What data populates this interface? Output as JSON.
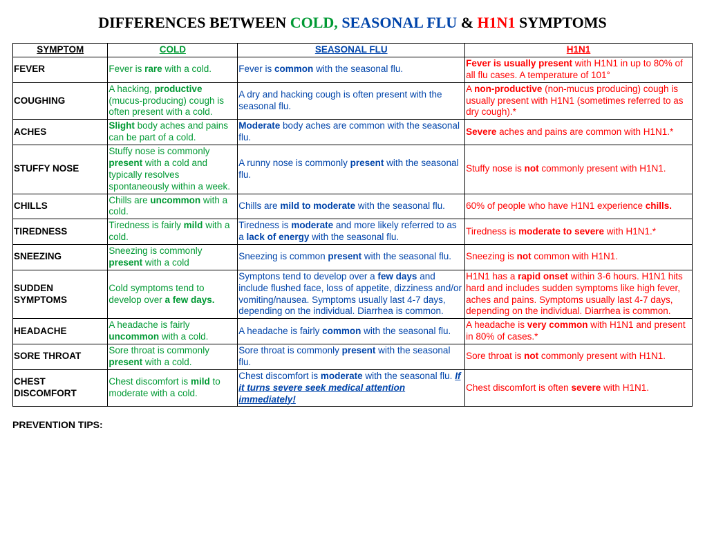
{
  "title_parts": {
    "pre": "DIFFERENCES BETWEEN ",
    "cold": "COLD, ",
    "flu": "SEASONAL FLU ",
    "amp": "& ",
    "h1n1": "H1N1 ",
    "post": "SYMPTOMS"
  },
  "headers": {
    "symptom": "SYMPTOM",
    "cold": "COLD",
    "flu": "SEASONAL FLU",
    "h1n1": "H1N1"
  },
  "rows": {
    "fever": {
      "label": "FEVER",
      "cold": {
        "a": "Fever is ",
        "b": "rare",
        "c": " with a cold."
      },
      "flu": {
        "a": "Fever is ",
        "b": "common",
        "c": " with the seasonal flu."
      },
      "h1n1": {
        "a": "Fever is usually present",
        "b": " with H1N1 in up to 80% of all flu cases. A temperature of 101°"
      }
    },
    "coughing": {
      "label": "COUGHING",
      "cold": {
        "a": "A hacking, ",
        "b": "productive",
        "c": " (mucus-producing) cough is often present with a cold."
      },
      "flu": {
        "a": "A dry and hacking cough is often present with the seasonal flu."
      },
      "h1n1": {
        "a": "A ",
        "b": "non-productive",
        "c": " (non-mucus producing) cough is usually present with H1N1 (sometimes referred to as dry cough).*"
      }
    },
    "aches": {
      "label": "ACHES",
      "cold": {
        "a": "Slight",
        "b": " body aches and pains can be part of a cold."
      },
      "flu": {
        "a": "Moderate",
        "b": " body aches are common with the seasonal flu."
      },
      "h1n1": {
        "a": "Severe",
        "b": " aches and pains are common with H1N1.*"
      }
    },
    "stuffy": {
      "label": "STUFFY NOSE",
      "cold": {
        "a": "Stuffy nose is commonly ",
        "b": "present",
        "c": " with a cold and typically resolves spontaneously within a week."
      },
      "flu": {
        "a": "A runny nose is commonly ",
        "b": "present",
        "c": " with the seasonal flu."
      },
      "h1n1": {
        "a": "Stuffy nose is ",
        "b": "not",
        "c": " commonly present with H1N1."
      }
    },
    "chills": {
      "label": "CHILLS",
      "cold": {
        "a": "Chills are ",
        "b": "uncommon",
        "c": " with a cold."
      },
      "flu": {
        "a": "Chills are ",
        "b": "mild to moderate",
        "c": " with the seasonal flu."
      },
      "h1n1": {
        "a": "60% of people who have H1N1 experience ",
        "b": "chills."
      }
    },
    "tiredness": {
      "label": "TIREDNESS",
      "cold": {
        "a": "Tiredness is fairly ",
        "b": "mild",
        "c": " with a cold."
      },
      "flu": {
        "a": "Tiredness is ",
        "b": "moderate",
        "c": " and more likely referred to as a ",
        "d": "lack of energy",
        "e": " with the seasonal flu."
      },
      "h1n1": {
        "a": "Tiredness is ",
        "b": "moderate to severe",
        "c": " with H1N1.*"
      }
    },
    "sneezing": {
      "label": "SNEEZING",
      "cold": {
        "a": "Sneezing is commonly ",
        "b": "present",
        "c": " with a cold"
      },
      "flu": {
        "a": "Sneezing is common ",
        "b": "present",
        "c": " with the seasonal flu."
      },
      "h1n1": {
        "a": "Sneezing is ",
        "b": "not",
        "c": " common with H1N1."
      }
    },
    "sudden": {
      "label": "SUDDEN SYMPTOMS",
      "cold": {
        "a": "Cold symptoms tend to develop over ",
        "b": "a few days."
      },
      "flu": {
        "a": "Symptons tend to develop over a ",
        "b": "few days",
        "c": " and include flushed face, loss of appetite, dizziness and/or vomiting/nausea. Symptoms usually last 4-7 days, depending on the individual. Diarrhea is common."
      },
      "h1n1": {
        "a": "H1N1 has a ",
        "b": "rapid onset",
        "c": " within 3-6 hours. H1N1 hits hard and includes sudden symptoms like high fever, aches and pains. Symptoms usually last 4-7 days, depending on the individual. Diarrhea is common."
      }
    },
    "headache": {
      "label": "HEADACHE",
      "cold": {
        "a": "A headache is fairly ",
        "b": "uncommon",
        "c": " with a cold."
      },
      "flu": {
        "a": " A headache is fairly ",
        "b": "common",
        "c": " with the seasonal flu."
      },
      "h1n1": {
        "a": "A headache is ",
        "b": "very common",
        "c": " with H1N1 and present in 80% of cases.*"
      }
    },
    "sorethroat": {
      "label": "SORE THROAT",
      "cold": {
        "a": "Sore throat is commonly ",
        "b": "present",
        "c": " with a cold."
      },
      "flu": {
        "a": "Sore throat is commonly ",
        "b": "present",
        "c": " with the seasonal flu."
      },
      "h1n1": {
        "a": "Sore throat is ",
        "b": "not",
        "c": " commonly present with H1N1."
      }
    },
    "chest": {
      "label": "CHEST DISCOMFORT",
      "cold": {
        "a": "Chest discomfort is ",
        "b": "mild",
        "c": " to moderate with a cold."
      },
      "flu": {
        "a": "Chest discomfort is ",
        "b": "moderate",
        "c": " with the seasonal flu. ",
        "d": "If it turns severe seek medical attention immediately!"
      },
      "h1n1": {
        "a": "Chest discomfort is often ",
        "b": "severe",
        "c": " with H1N1."
      }
    }
  },
  "footer": "PREVENTION TIPS:"
}
